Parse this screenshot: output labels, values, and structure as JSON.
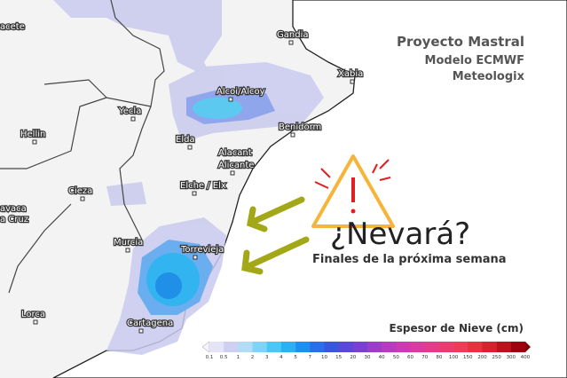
{
  "header": {
    "title": "Proyecto Mastral",
    "model": "Modelo ECMWF",
    "source": "Meteologix"
  },
  "headline": {
    "question": "¿Nevará?",
    "subtitle": "Finales de la próxima semana"
  },
  "cities": [
    "acete",
    "Gandia",
    "Xabia",
    "Alcoi/Alcoy",
    "Yecla",
    "Hellin",
    "Benidorm",
    "Elda",
    "Alacant",
    "Alicante",
    "Cieza",
    "Elche / Elx",
    "avaca",
    "a Cruz",
    "Murcia",
    "Torrevieja",
    "Lorca",
    "Cartagena"
  ],
  "legend": {
    "title": "Espesor de Nieve (cm)",
    "labels": [
      "0.1",
      "0.5",
      "1",
      "2",
      "3",
      "4",
      "5",
      "7",
      "10",
      "15",
      "20",
      "30",
      "40",
      "50",
      "60",
      "70",
      "80",
      "100",
      "150",
      "200",
      "250",
      "300",
      "400"
    ],
    "colors": [
      "#e4e4f6",
      "#cdd0f2",
      "#b2dcf5",
      "#7fd3f5",
      "#4cc6f2",
      "#26b3f0",
      "#1b90ee",
      "#2a6ee8",
      "#3a55e0",
      "#5a48d8",
      "#7a40d0",
      "#9a3ec8",
      "#b53cbd",
      "#cc3ab0",
      "#dd3aa0",
      "#e83a8a",
      "#ee3a70",
      "#f03a58",
      "#e83040",
      "#d82030",
      "#c01020",
      "#a00010"
    ]
  }
}
